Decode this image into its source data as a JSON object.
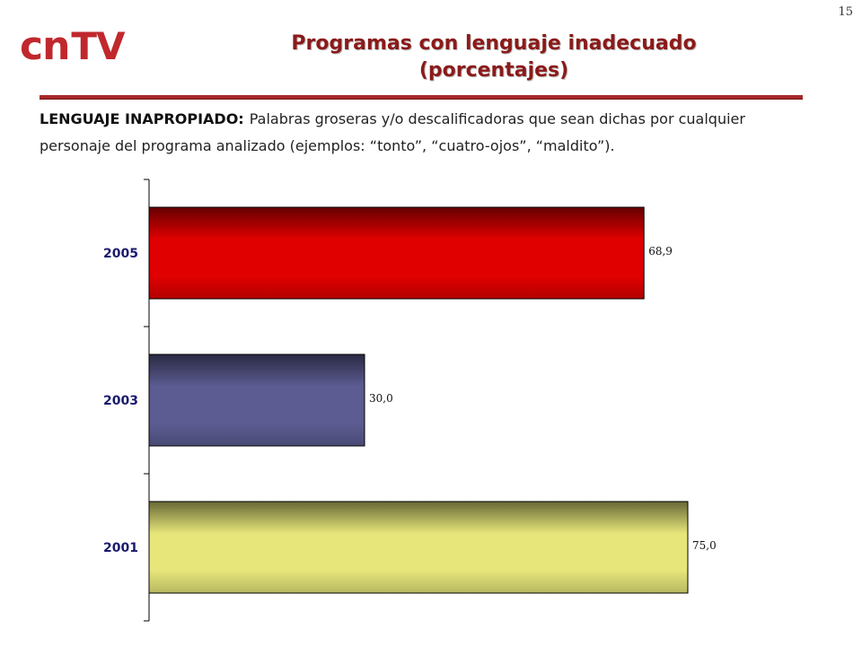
{
  "page_number": "15",
  "logo": {
    "cn": "cn",
    "tv": "TV"
  },
  "title_line1": "Programas con lenguaje inadecuado",
  "title_line2": "(porcentajes)",
  "definition": {
    "term": "LENGUAJE INAPROPIADO:",
    "text": "Palabras groseras y/o descalificadoras que sean dichas por cualquier personaje del programa analizado (ejemplos: “tonto”, “cuatro-ojos”, “maldito”)."
  },
  "colors": {
    "accent": "#a52a2a",
    "title": "#8b1a1a"
  },
  "chart_data": {
    "type": "bar",
    "orientation": "horizontal",
    "categories": [
      "2005",
      "2003",
      "2001"
    ],
    "values": [
      68.9,
      30.0,
      75.0
    ],
    "value_labels": [
      "68,9",
      "30,0",
      "75,0"
    ],
    "colors": [
      "#e00000",
      "#5c5c92",
      "#e6e67a"
    ],
    "xlim": [
      0,
      100
    ],
    "grid": false,
    "legend": "none"
  }
}
